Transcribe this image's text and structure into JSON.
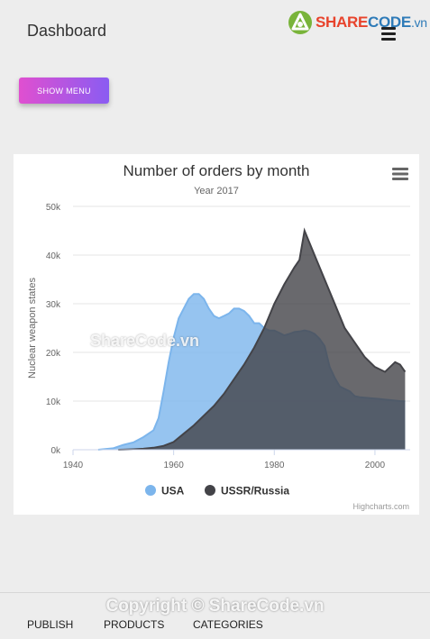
{
  "header": {
    "title": "Dashboard",
    "logo": {
      "part1": "SHARE",
      "part2": "CODE",
      "part3": ".vn"
    }
  },
  "show_menu_label": "SHOW MENU",
  "watermark": {
    "center": "ShareCode.vn",
    "copyright": "Copyright © ShareCode.vn"
  },
  "chart_data": {
    "type": "area",
    "title": "Number of orders by month",
    "subtitle": "Year 2017",
    "xlabel": "",
    "ylabel": "Nuclear weapon states",
    "xlim": [
      1940,
      2007
    ],
    "ylim": [
      0,
      50000
    ],
    "xticks": [
      1940,
      1960,
      1980,
      2000
    ],
    "yticks": [
      0,
      10000,
      20000,
      30000,
      40000,
      50000
    ],
    "ytick_labels": [
      "0k",
      "10k",
      "20k",
      "30k",
      "40k",
      "50k"
    ],
    "credits": "Highcharts.com",
    "legend_position": "bottom",
    "series": [
      {
        "name": "USA",
        "color": "#7cb5ec",
        "points": [
          [
            1945,
            6
          ],
          [
            1948,
            300
          ],
          [
            1950,
            1000
          ],
          [
            1952,
            1500
          ],
          [
            1954,
            2600
          ],
          [
            1956,
            4000
          ],
          [
            1957,
            6500
          ],
          [
            1958,
            12000
          ],
          [
            1959,
            18000
          ],
          [
            1960,
            23000
          ],
          [
            1961,
            27000
          ],
          [
            1962,
            29000
          ],
          [
            1963,
            31000
          ],
          [
            1964,
            32000
          ],
          [
            1965,
            32000
          ],
          [
            1966,
            31000
          ],
          [
            1967,
            29000
          ],
          [
            1968,
            27500
          ],
          [
            1969,
            27000
          ],
          [
            1970,
            27500
          ],
          [
            1971,
            28000
          ],
          [
            1972,
            29000
          ],
          [
            1973,
            29000
          ],
          [
            1974,
            28500
          ],
          [
            1975,
            27500
          ],
          [
            1976,
            26000
          ],
          [
            1977,
            26000
          ],
          [
            1978,
            25000
          ],
          [
            1979,
            24500
          ],
          [
            1980,
            24500
          ],
          [
            1981,
            24000
          ],
          [
            1982,
            23500
          ],
          [
            1983,
            23800
          ],
          [
            1984,
            24200
          ],
          [
            1985,
            24300
          ],
          [
            1986,
            24500
          ],
          [
            1987,
            24300
          ],
          [
            1988,
            23800
          ],
          [
            1989,
            22800
          ],
          [
            1990,
            21300
          ],
          [
            1991,
            17000
          ],
          [
            1992,
            14800
          ],
          [
            1993,
            13000
          ],
          [
            1994,
            12500
          ],
          [
            1995,
            12000
          ],
          [
            1996,
            11000
          ],
          [
            1997,
            10800
          ],
          [
            1998,
            10700
          ],
          [
            1999,
            10600
          ],
          [
            2000,
            10500
          ],
          [
            2001,
            10400
          ],
          [
            2002,
            10300
          ],
          [
            2003,
            10200
          ],
          [
            2004,
            10100
          ],
          [
            2005,
            10000
          ],
          [
            2006,
            9950
          ]
        ]
      },
      {
        "name": "USSR/Russia",
        "color": "#434348",
        "points": [
          [
            1949,
            5
          ],
          [
            1950,
            25
          ],
          [
            1952,
            100
          ],
          [
            1954,
            200
          ],
          [
            1956,
            400
          ],
          [
            1958,
            800
          ],
          [
            1960,
            1600
          ],
          [
            1962,
            3300
          ],
          [
            1964,
            5000
          ],
          [
            1966,
            7000
          ],
          [
            1968,
            9000
          ],
          [
            1970,
            11500
          ],
          [
            1972,
            14500
          ],
          [
            1974,
            17500
          ],
          [
            1976,
            21000
          ],
          [
            1978,
            25000
          ],
          [
            1980,
            30000
          ],
          [
            1982,
            34000
          ],
          [
            1984,
            37500
          ],
          [
            1985,
            39000
          ],
          [
            1986,
            45000
          ],
          [
            1988,
            40000
          ],
          [
            1990,
            35000
          ],
          [
            1992,
            30000
          ],
          [
            1994,
            25000
          ],
          [
            1996,
            22000
          ],
          [
            1998,
            19000
          ],
          [
            2000,
            17000
          ],
          [
            2002,
            16000
          ],
          [
            2004,
            18000
          ],
          [
            2005,
            17500
          ],
          [
            2006,
            16000
          ]
        ]
      }
    ]
  },
  "bottom_nav": [
    "PUBLISH",
    "PRODUCTS",
    "CATEGORIES"
  ]
}
